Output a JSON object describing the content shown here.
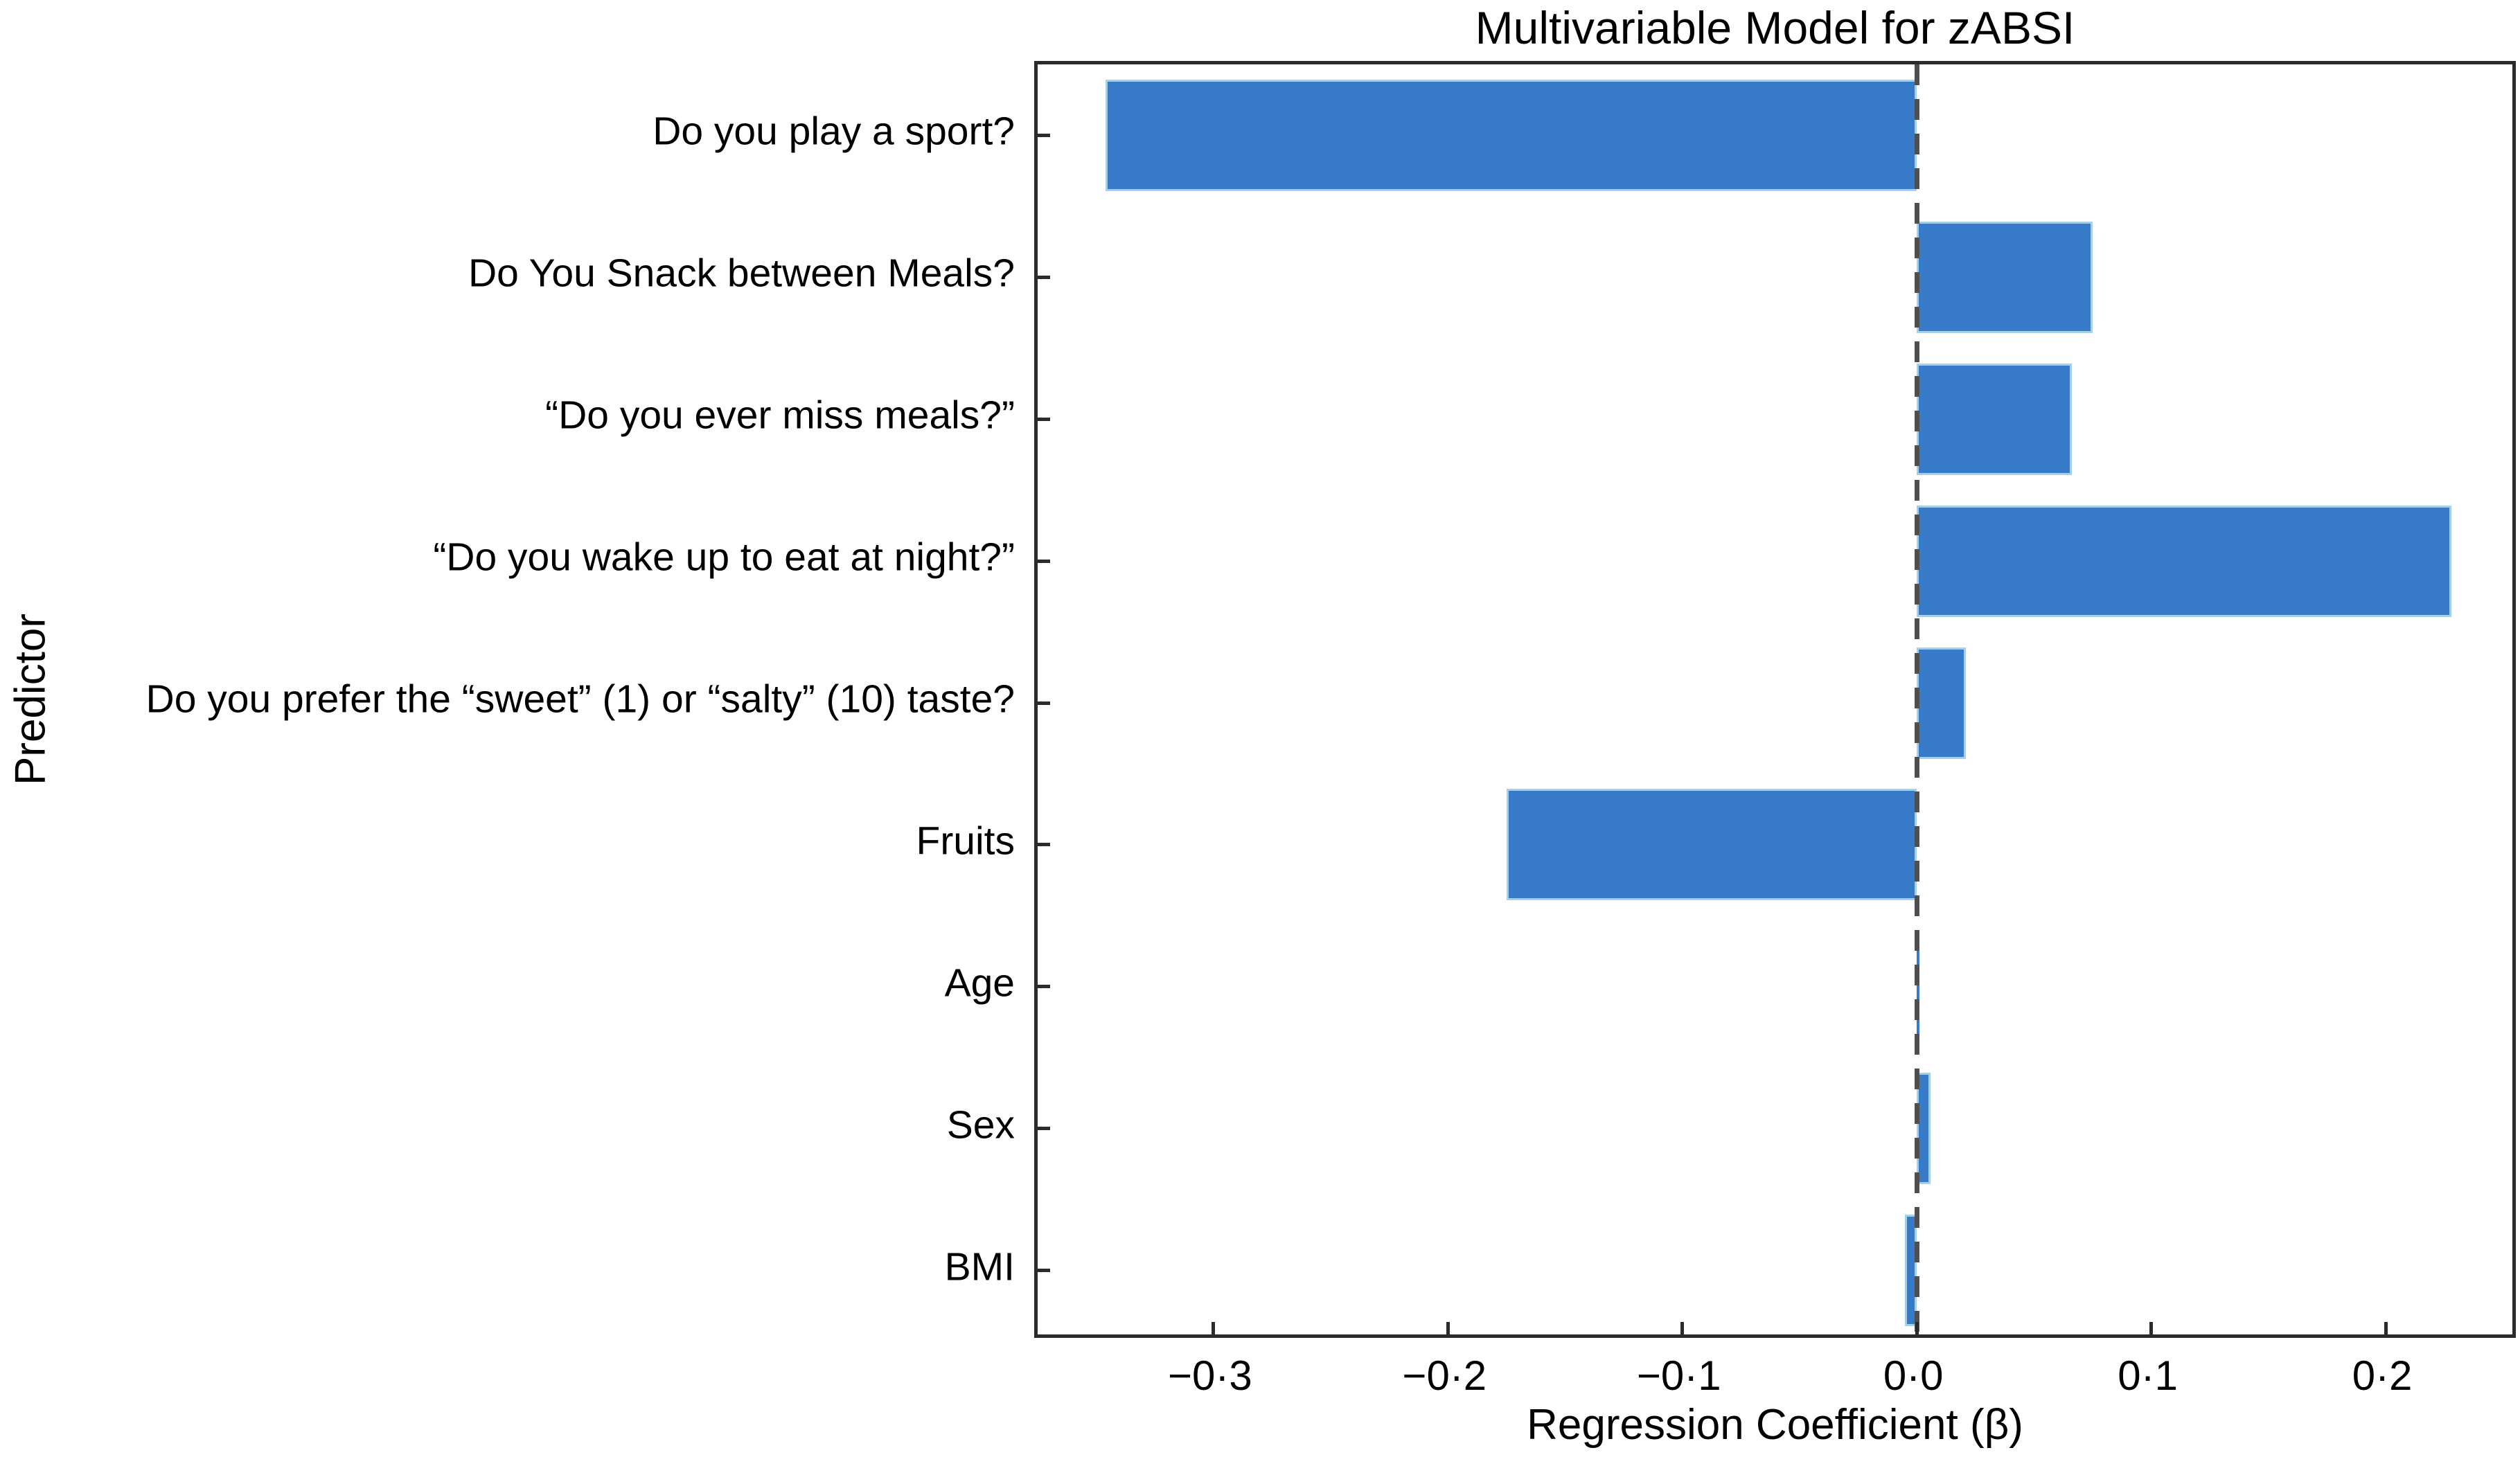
{
  "chart_data": {
    "type": "bar",
    "orientation": "horizontal",
    "title": "Multivariable Model for zABSI",
    "xlabel": "Regression Coefficient (β)",
    "ylabel": "Predictor",
    "categories": [
      "Do you play a sport?",
      "Do You Snack between Meals?",
      "“Do you ever miss meals?”",
      "“Do you wake up to eat at night?”",
      "Do you prefer the “sweet” (1) or “salty” (10) taste?",
      "Fruits",
      "Age",
      "Sex",
      "BMI"
    ],
    "values": [
      -0.346,
      0.075,
      0.066,
      0.228,
      0.021,
      -0.175,
      0.001,
      0.006,
      -0.005
    ],
    "xlim": [
      -0.375,
      0.257
    ],
    "xticks": {
      "values": [
        -0.3,
        -0.2,
        -0.1,
        0.0,
        0.1,
        0.2
      ],
      "labels": [
        "−0·3",
        "−0·2",
        "−0·1",
        "0·0",
        "0·1",
        "0·2"
      ]
    },
    "zero_line": {
      "x": 0.0,
      "style": "dashed",
      "color": "#4f4f4f"
    },
    "bar_color": "#377bc8",
    "bar_edge_color": "#a4d0ea",
    "grid": false,
    "legend": null
  }
}
